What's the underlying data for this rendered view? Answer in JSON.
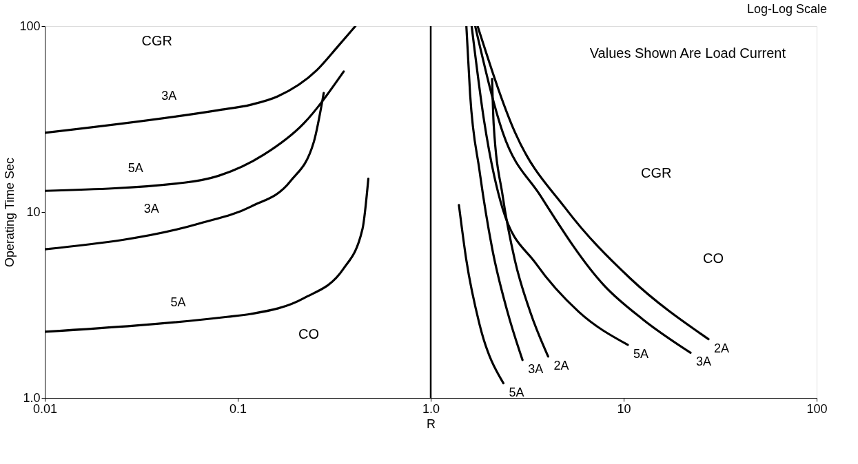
{
  "chart_data": {
    "type": "line",
    "title": "Log-Log Scale",
    "xlabel": "R",
    "ylabel": "Operating Time Sec",
    "log": "xy",
    "grid": false,
    "marker": "none",
    "line_style": "solid",
    "xlim": [
      0.01,
      100
    ],
    "xticks": [
      0.01,
      0.1,
      {
        "value": 1,
        "label": "1.0"
      },
      10,
      100
    ],
    "ylim": [
      1,
      100
    ],
    "yticks": [
      {
        "value": 1,
        "label": "1.0"
      },
      10,
      100
    ],
    "ref_lines": [
      {
        "axis": "x",
        "value": 1,
        "label": null,
        "color": "#000000"
      }
    ],
    "annotations": [
      "Values Shown Are Load Current",
      "CGR",
      "CO",
      "CGR",
      "CO"
    ],
    "series": [
      {
        "name": "3A",
        "color": "#000000",
        "x": [
          0.01,
          0.079,
          0.117,
          0.161,
          0.257,
          0.331,
          0.407
        ],
        "values": [
          26.7,
          35.3,
          37.8,
          41.9,
          58,
          78,
          100
        ]
      },
      {
        "name": "5A",
        "color": "#000000",
        "x": [
          0.01,
          0.053,
          0.08,
          0.136,
          0.22,
          0.354
        ],
        "values": [
          13.0,
          14.4,
          15.7,
          20.3,
          30,
          57
        ]
      },
      {
        "name": "3A",
        "color": "#000000",
        "x": [
          0.01,
          0.064,
          0.117,
          0.188,
          0.248,
          0.279
        ],
        "values": [
          6.3,
          8.7,
          10.7,
          14.7,
          23.9,
          43.7
        ]
      },
      {
        "name": "5A",
        "color": "#000000",
        "x": [
          0.01,
          0.088,
          0.117,
          0.22,
          0.354,
          0.443,
          0.475
        ],
        "values": [
          2.27,
          2.73,
          2.83,
          3.44,
          4.97,
          8.1,
          15.1
        ]
      },
      {
        "name": "5A",
        "color": "#000000",
        "x": [
          1.4,
          1.53,
          1.79,
          2.38
        ],
        "values": [
          10.9,
          5.5,
          2.49,
          1.2
        ]
      },
      {
        "name": "3A",
        "color": "#000000",
        "x": [
          1.53,
          1.6,
          1.79,
          2.08,
          2.5,
          2.99
        ],
        "values": [
          100,
          43,
          16.7,
          6.4,
          2.9,
          1.6
        ]
      },
      {
        "name": "2A",
        "color": "#000000",
        "x": [
          2.08,
          2.12,
          2.36,
          2.73,
          3.28,
          4.06
        ],
        "values": [
          52,
          29.5,
          12.2,
          5.5,
          2.9,
          1.67
        ]
      },
      {
        "name": "5A",
        "color": "#000000",
        "x": [
          1.63,
          1.89,
          2.36,
          3.5,
          5.86,
          10.5
        ],
        "values": [
          100,
          31,
          10.4,
          5.3,
          2.9,
          1.93
        ]
      },
      {
        "name": "3A",
        "color": "#000000",
        "x": [
          1.7,
          2.36,
          3.71,
          7.96,
          12.6,
          22.2
        ],
        "values": [
          100,
          26.9,
          12.2,
          4.0,
          2.64,
          1.75
        ]
      },
      {
        "name": "2A",
        "color": "#000000",
        "x": [
          1.75,
          2.73,
          5.02,
          10.8,
          27.5
        ],
        "values": [
          100,
          26.9,
          10.4,
          4.4,
          2.07
        ]
      }
    ]
  }
}
